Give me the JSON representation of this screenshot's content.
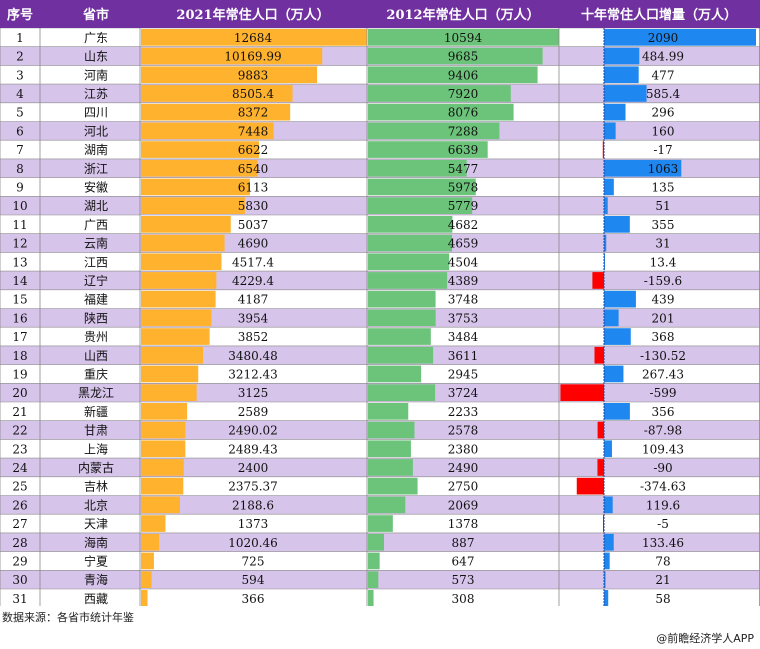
{
  "colors": {
    "header_bg": "#7030a0",
    "row_even": "#ffffff",
    "row_odd": "#d7c4ea",
    "bar_2021": "#ffb22e",
    "bar_2012": "#6cc47b",
    "bar_pos": "#1f87f0",
    "bar_neg": "#ff0000"
  },
  "headers": {
    "index": "序号",
    "province": "省市",
    "pop2021": "2021年常住人口（万人）",
    "pop2012": "2012年常住人口（万人）",
    "change": "十年常住人口增量（万人）"
  },
  "chart_data": {
    "type": "table",
    "columns": [
      "序号",
      "省市",
      "2021年常住人口（万人）",
      "2012年常住人口（万人）",
      "十年常住人口增量（万人）"
    ],
    "rows": [
      {
        "index": "1",
        "province": "广东",
        "pop2021": "12684",
        "pop2012": "10594",
        "change": "2090"
      },
      {
        "index": "2",
        "province": "山东",
        "pop2021": "10169.99",
        "pop2012": "9685",
        "change": "484.99"
      },
      {
        "index": "3",
        "province": "河南",
        "pop2021": "9883",
        "pop2012": "9406",
        "change": "477"
      },
      {
        "index": "4",
        "province": "江苏",
        "pop2021": "8505.4",
        "pop2012": "7920",
        "change": "585.4"
      },
      {
        "index": "5",
        "province": "四川",
        "pop2021": "8372",
        "pop2012": "8076",
        "change": "296"
      },
      {
        "index": "6",
        "province": "河北",
        "pop2021": "7448",
        "pop2012": "7288",
        "change": "160"
      },
      {
        "index": "7",
        "province": "湖南",
        "pop2021": "6622",
        "pop2012": "6639",
        "change": "-17"
      },
      {
        "index": "8",
        "province": "浙江",
        "pop2021": "6540",
        "pop2012": "5477",
        "change": "1063"
      },
      {
        "index": "9",
        "province": "安徽",
        "pop2021": "6113",
        "pop2012": "5978",
        "change": "135"
      },
      {
        "index": "10",
        "province": "湖北",
        "pop2021": "5830",
        "pop2012": "5779",
        "change": "51"
      },
      {
        "index": "11",
        "province": "广西",
        "pop2021": "5037",
        "pop2012": "4682",
        "change": "355"
      },
      {
        "index": "12",
        "province": "云南",
        "pop2021": "4690",
        "pop2012": "4659",
        "change": "31"
      },
      {
        "index": "13",
        "province": "江西",
        "pop2021": "4517.4",
        "pop2012": "4504",
        "change": "13.4"
      },
      {
        "index": "14",
        "province": "辽宁",
        "pop2021": "4229.4",
        "pop2012": "4389",
        "change": "-159.6"
      },
      {
        "index": "15",
        "province": "福建",
        "pop2021": "4187",
        "pop2012": "3748",
        "change": "439"
      },
      {
        "index": "16",
        "province": "陕西",
        "pop2021": "3954",
        "pop2012": "3753",
        "change": "201"
      },
      {
        "index": "17",
        "province": "贵州",
        "pop2021": "3852",
        "pop2012": "3484",
        "change": "368"
      },
      {
        "index": "18",
        "province": "山西",
        "pop2021": "3480.48",
        "pop2012": "3611",
        "change": "-130.52"
      },
      {
        "index": "19",
        "province": "重庆",
        "pop2021": "3212.43",
        "pop2012": "2945",
        "change": "267.43"
      },
      {
        "index": "20",
        "province": "黑龙江",
        "pop2021": "3125",
        "pop2012": "3724",
        "change": "-599"
      },
      {
        "index": "21",
        "province": "新疆",
        "pop2021": "2589",
        "pop2012": "2233",
        "change": "356"
      },
      {
        "index": "22",
        "province": "甘肃",
        "pop2021": "2490.02",
        "pop2012": "2578",
        "change": "-87.98"
      },
      {
        "index": "23",
        "province": "上海",
        "pop2021": "2489.43",
        "pop2012": "2380",
        "change": "109.43"
      },
      {
        "index": "24",
        "province": "内蒙古",
        "pop2021": "2400",
        "pop2012": "2490",
        "change": "-90"
      },
      {
        "index": "25",
        "province": "吉林",
        "pop2021": "2375.37",
        "pop2012": "2750",
        "change": "-374.63"
      },
      {
        "index": "26",
        "province": "北京",
        "pop2021": "2188.6",
        "pop2012": "2069",
        "change": "119.6"
      },
      {
        "index": "27",
        "province": "天津",
        "pop2021": "1373",
        "pop2012": "1378",
        "change": "-5"
      },
      {
        "index": "28",
        "province": "海南",
        "pop2021": "1020.46",
        "pop2012": "887",
        "change": "133.46"
      },
      {
        "index": "29",
        "province": "宁夏",
        "pop2021": "725",
        "pop2012": "647",
        "change": "78"
      },
      {
        "index": "30",
        "province": "青海",
        "pop2021": "594",
        "pop2012": "573",
        "change": "21"
      },
      {
        "index": "31",
        "province": "西藏",
        "pop2021": "366",
        "pop2012": "308",
        "change": "58"
      }
    ]
  },
  "footer": {
    "source": "数据来源：各省市统计年鉴",
    "credit": "@前瞻经济学人APP"
  }
}
